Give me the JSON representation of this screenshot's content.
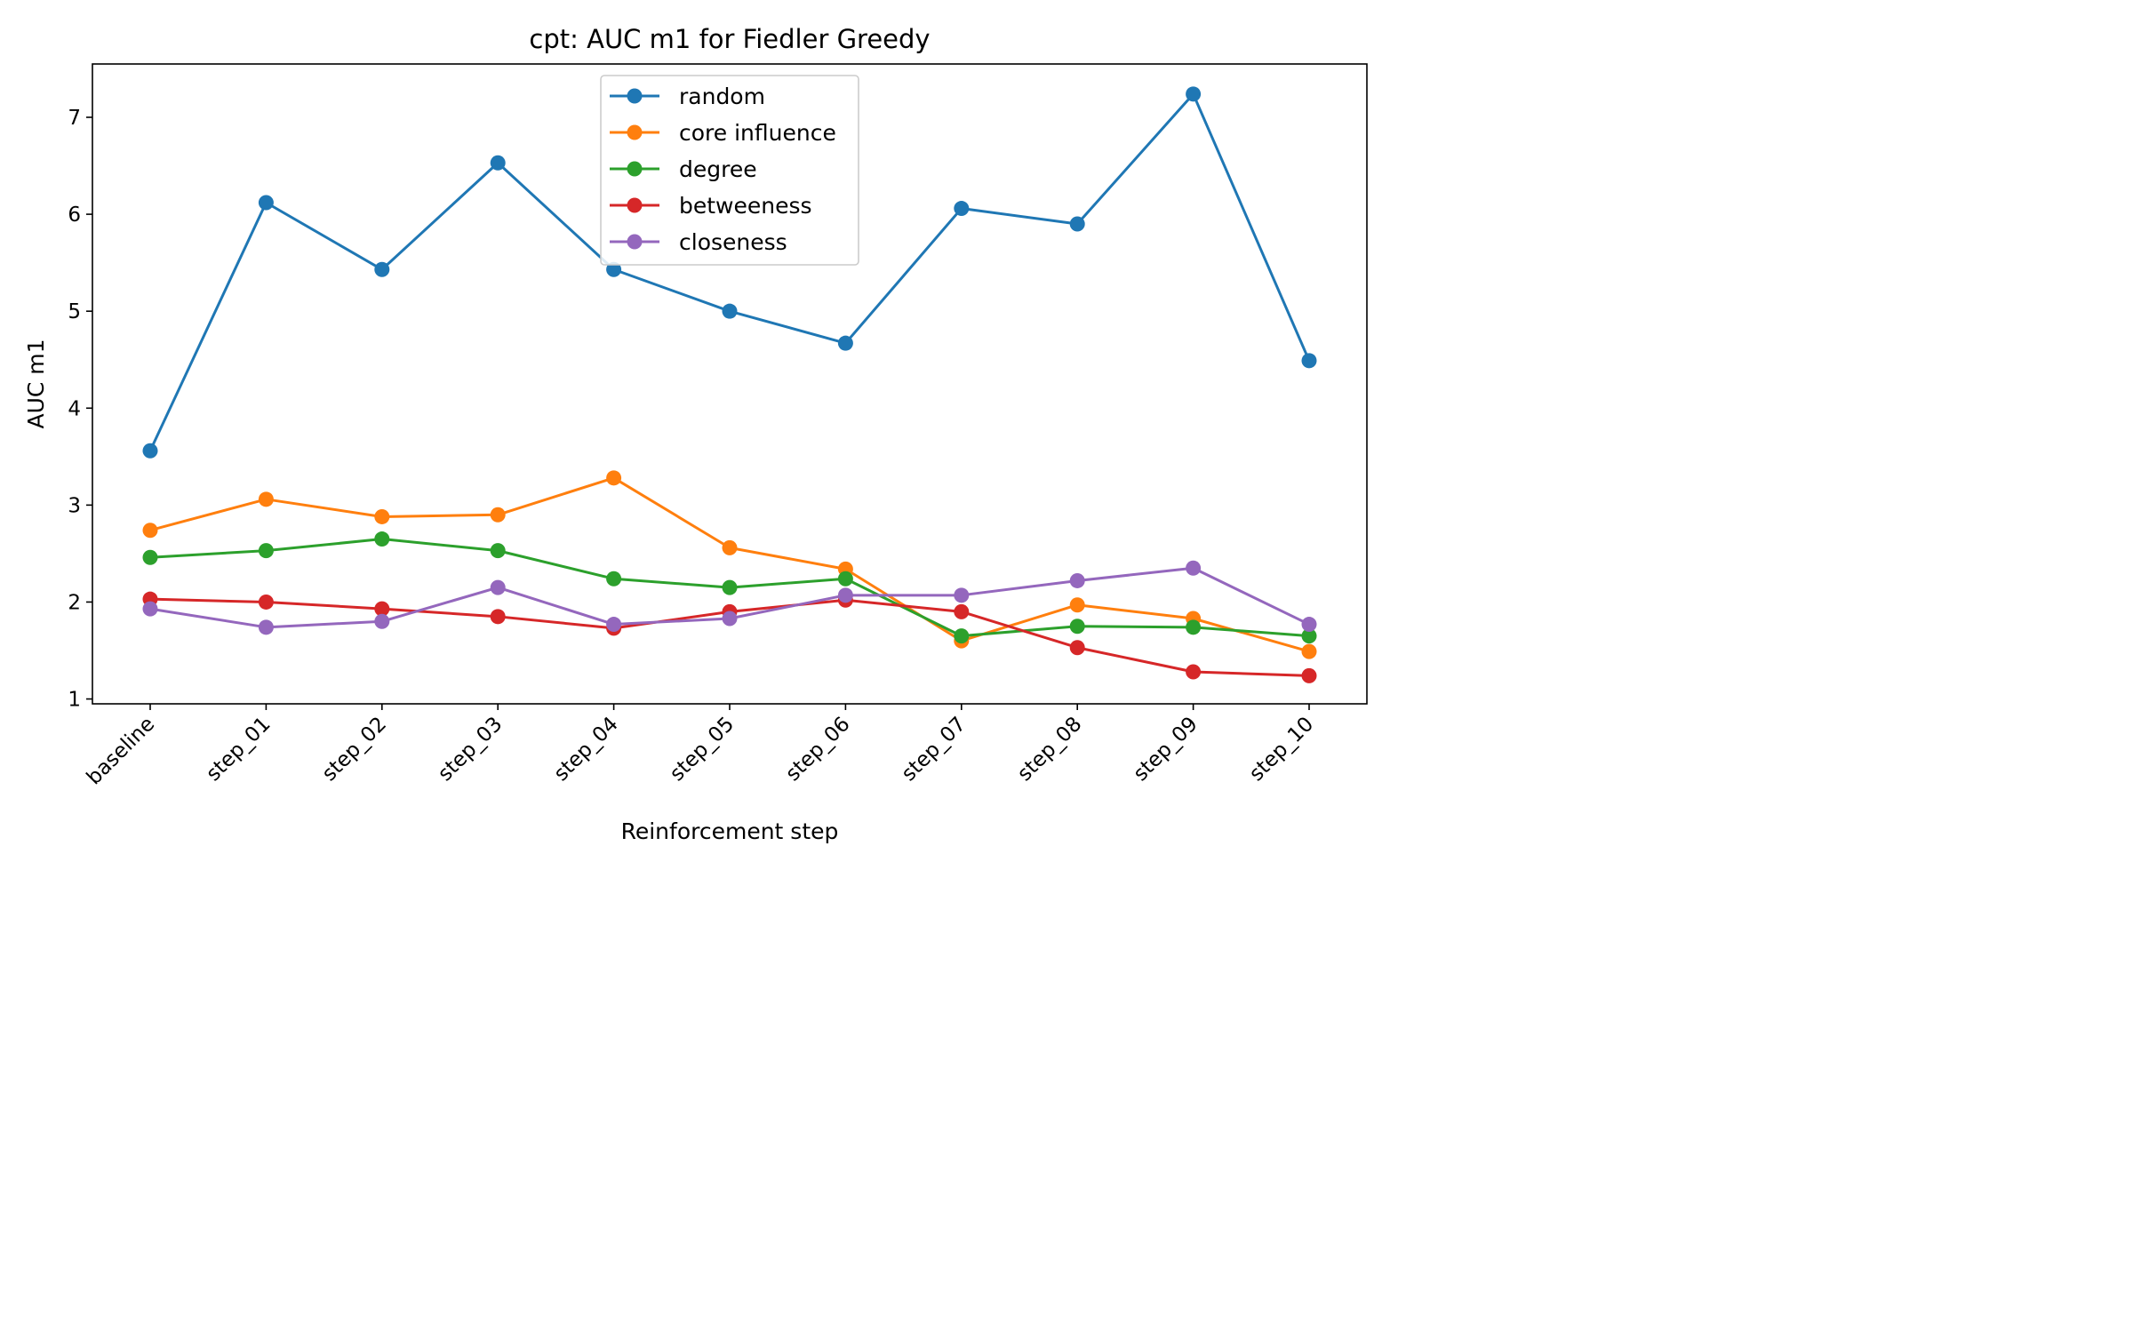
{
  "chart_data": {
    "type": "line",
    "title": "cpt: AUC m1 for Fiedler Greedy",
    "xlabel": "Reinforcement step",
    "ylabel": "AUC m1",
    "categories": [
      "baseline",
      "step_01",
      "step_02",
      "step_03",
      "step_04",
      "step_05",
      "step_06",
      "step_07",
      "step_08",
      "step_09",
      "step_10"
    ],
    "ylim": [
      0.95,
      7.55
    ],
    "yticks": [
      1,
      2,
      3,
      4,
      5,
      6,
      7
    ],
    "grid": false,
    "legend_position": "upper center",
    "series": [
      {
        "name": "random",
        "color": "#1f77b4",
        "values": [
          3.56,
          6.12,
          5.43,
          6.53,
          5.43,
          5.0,
          4.67,
          6.06,
          5.9,
          7.24,
          4.49
        ]
      },
      {
        "name": "core influence",
        "color": "#ff7f0e",
        "values": [
          2.74,
          3.06,
          2.88,
          2.9,
          3.28,
          2.56,
          2.34,
          1.6,
          1.97,
          1.83,
          1.49
        ]
      },
      {
        "name": "degree",
        "color": "#2ca02c",
        "values": [
          2.46,
          2.53,
          2.65,
          2.53,
          2.24,
          2.15,
          2.24,
          1.65,
          1.75,
          1.74,
          1.65
        ]
      },
      {
        "name": "betweeness",
        "color": "#d62728",
        "values": [
          2.03,
          2.0,
          1.93,
          1.85,
          1.73,
          1.9,
          2.02,
          1.9,
          1.53,
          1.28,
          1.24
        ]
      },
      {
        "name": "closeness",
        "color": "#9467bd",
        "values": [
          1.93,
          1.74,
          1.8,
          2.15,
          1.77,
          1.83,
          2.07,
          2.07,
          2.22,
          2.35,
          1.77
        ]
      }
    ]
  }
}
